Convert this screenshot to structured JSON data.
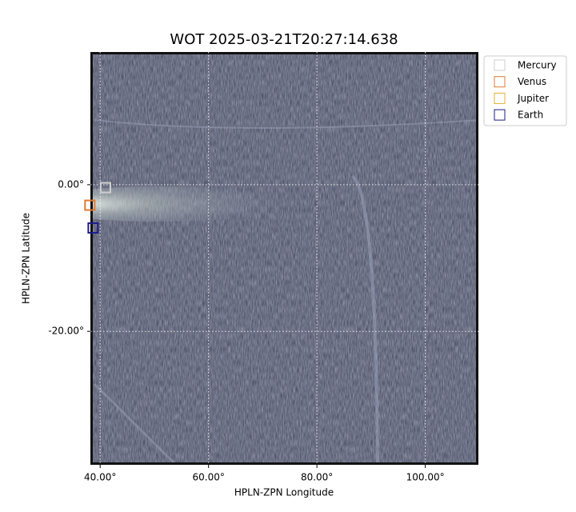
{
  "chart_data": {
    "type": "image",
    "title": "WOT 2025-03-21T20:27:14.638",
    "x_label": "HPLN-ZPN Longitude",
    "y_label": "HPLN-ZPN Latitude",
    "xlim": [
      38.2,
      109.8
    ],
    "ylim": [
      -38.2,
      18.1
    ],
    "xticks": [
      {
        "value": 40,
        "label": "40.00°"
      },
      {
        "value": 60,
        "label": "60.00°"
      },
      {
        "value": 80,
        "label": "80.00°"
      },
      {
        "value": 100,
        "label": "100.00°"
      }
    ],
    "yticks": [
      {
        "value": 0,
        "label": "0.00°"
      },
      {
        "value": -20,
        "label": "-20.00°"
      }
    ],
    "grid": true,
    "legend": "upper right outside",
    "series": [
      {
        "name": "Mercury",
        "color": "#cfcfcf",
        "x": [
          41.0
        ],
        "y": [
          -0.4
        ]
      },
      {
        "name": "Venus",
        "color": "#e07a30",
        "x": [
          38.1
        ],
        "y": [
          -2.8
        ]
      },
      {
        "name": "Jupiter",
        "color": "#e0b030",
        "x": [
          null
        ],
        "y": [
          null
        ]
      },
      {
        "name": "Earth",
        "color": "#1c1c8a",
        "x": [
          38.7
        ],
        "y": [
          -5.9
        ]
      }
    ]
  }
}
